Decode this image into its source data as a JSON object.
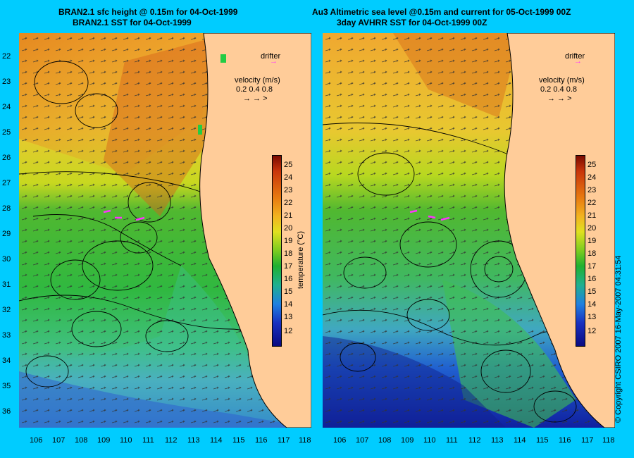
{
  "left": {
    "title_line1": "BRAN2.1 sfc height @ 0.15m for 04-Oct-1999",
    "title_line2": "BRAN2.1 SST for 04-Oct-1999",
    "drifter": "drifter",
    "velocity_title": "velocity (m/s)",
    "velocity_ticks": "0.2  0.4  0.8"
  },
  "right": {
    "title_line1": "Au3 Altimetric sea level  @0.15m and current for 05-Oct-1999 00Z",
    "title_line2": "3day AVHRR SST for 04-Oct-1999 00Z",
    "drifter": "drifter",
    "velocity_title": "velocity (m/s)",
    "velocity_ticks": "0.2  0.4  0.8"
  },
  "lat_ticks": [
    "22",
    "23",
    "24",
    "25",
    "26",
    "27",
    "28",
    "29",
    "30",
    "31",
    "32",
    "33",
    "34",
    "35",
    "36"
  ],
  "lon_ticks": [
    "106",
    "107",
    "108",
    "109",
    "110",
    "111",
    "112",
    "113",
    "114",
    "115",
    "116",
    "117",
    "118"
  ],
  "colorbar": {
    "label": "temperature (°C)",
    "ticks": [
      "25",
      "24",
      "23",
      "22",
      "21",
      "20",
      "19",
      "18",
      "17",
      "16",
      "15",
      "14",
      "13",
      "12"
    ]
  },
  "copyright": "© Copyright CSIRO 2007  16-May-2007 04:31:54",
  "colors": {
    "background": "#00ccff",
    "land": "#ffcc99",
    "drifter": "#ff33ff"
  }
}
